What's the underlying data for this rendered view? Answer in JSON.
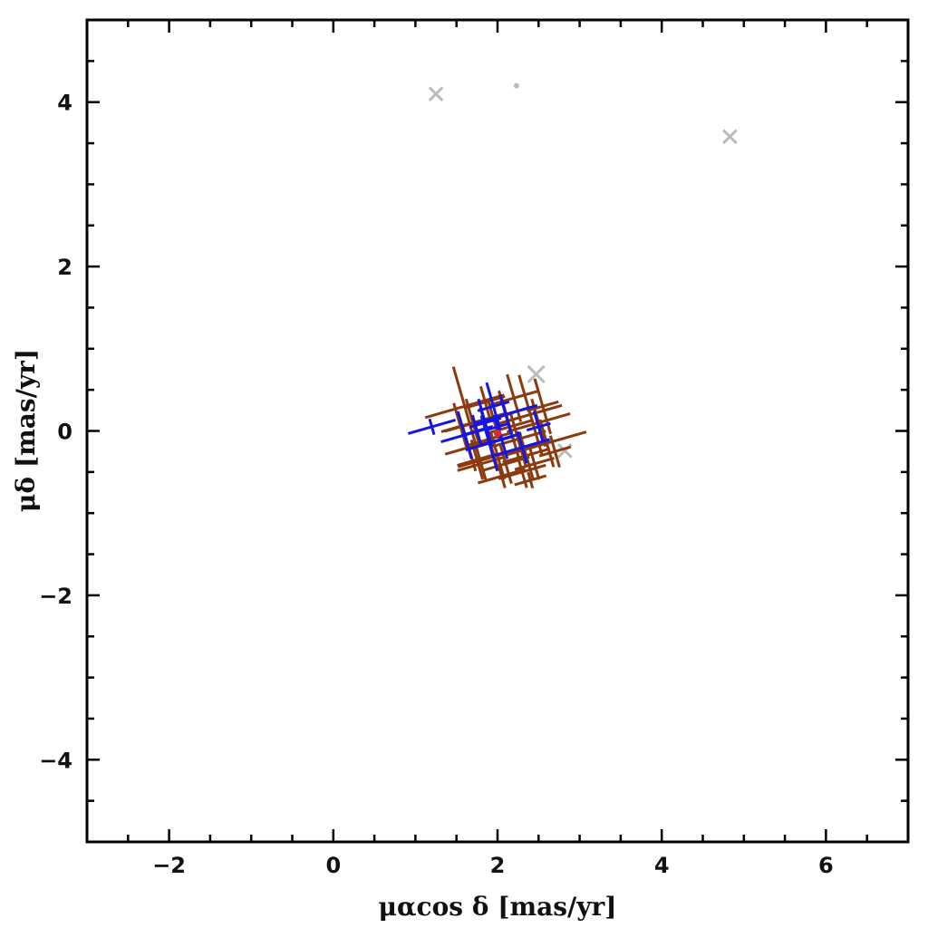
{
  "chart_data": {
    "type": "scatter",
    "title": "",
    "xlabel": "μαcos δ [mas/yr]",
    "ylabel": "μδ [mas/yr]",
    "xlim": [
      -3,
      7
    ],
    "ylim": [
      -5,
      5
    ],
    "x_ticks": [
      -2,
      0,
      2,
      4,
      6
    ],
    "y_ticks": [
      -4,
      -2,
      0,
      2,
      4
    ],
    "x_tick_labels": [
      "−2",
      "0",
      "2",
      "4",
      "6"
    ],
    "y_tick_labels": [
      "−4",
      "−2",
      "0",
      "2",
      "4"
    ],
    "grid": false,
    "colors": {
      "members": "#8B3A0E",
      "blue_members": "#1515E8",
      "field": "#BBBBBB",
      "center": "#E8262A",
      "frame": "#000000"
    },
    "series": [
      {
        "role": "field",
        "points": [
          {
            "x": 1.25,
            "y": 4.1,
            "ex": 0.08,
            "ey": 0.08
          },
          {
            "x": 4.83,
            "y": 3.58,
            "ex": 0.08,
            "ey": 0.08
          },
          {
            "x": 2.23,
            "y": 4.2,
            "ex": 0.0,
            "ey": 0.0
          },
          {
            "x": 2.47,
            "y": 0.69,
            "ex": 0.1,
            "ey": 0.1
          },
          {
            "x": 2.82,
            "y": -0.24,
            "ex": 0.08,
            "ey": 0.08
          }
        ]
      },
      {
        "role": "members",
        "points": [
          {
            "x": 1.6,
            "y": 0.3,
            "ex": 0.5,
            "ey": 0.5
          },
          {
            "x": 2.4,
            "y": 0.2,
            "ex": 0.4,
            "ey": 0.5
          },
          {
            "x": 2.0,
            "y": -0.3,
            "ex": 0.5,
            "ey": 0.3
          },
          {
            "x": 2.6,
            "y": -0.15,
            "ex": 0.5,
            "ey": 0.3
          },
          {
            "x": 1.8,
            "y": -0.4,
            "ex": 0.3,
            "ey": 0.2
          },
          {
            "x": 2.3,
            "y": -0.5,
            "ex": 0.3,
            "ey": 0.2
          },
          {
            "x": 1.7,
            "y": 0.1,
            "ex": 0.4,
            "ey": 0.3
          },
          {
            "x": 2.2,
            "y": 0.4,
            "ex": 0.3,
            "ey": 0.3
          },
          {
            "x": 2.5,
            "y": 0.1,
            "ex": 0.4,
            "ey": 0.3
          },
          {
            "x": 1.9,
            "y": -0.1,
            "ex": 0.3,
            "ey": 0.4
          },
          {
            "x": 2.1,
            "y": 0.2,
            "ex": 0.3,
            "ey": 0.3
          },
          {
            "x": 2.35,
            "y": -0.3,
            "ex": 0.3,
            "ey": 0.3
          },
          {
            "x": 1.65,
            "y": -0.2,
            "ex": 0.3,
            "ey": 0.3
          },
          {
            "x": 2.05,
            "y": -0.55,
            "ex": 0.3,
            "ey": 0.15
          },
          {
            "x": 2.45,
            "y": -0.4,
            "ex": 0.25,
            "ey": 0.2
          },
          {
            "x": 2.15,
            "y": 0.05,
            "ex": 0.3,
            "ey": 0.4
          },
          {
            "x": 1.85,
            "y": 0.35,
            "ex": 0.25,
            "ey": 0.2
          },
          {
            "x": 2.55,
            "y": 0.3,
            "ex": 0.2,
            "ey": 0.35
          },
          {
            "x": 1.75,
            "y": -0.35,
            "ex": 0.25,
            "ey": 0.25
          },
          {
            "x": 2.25,
            "y": -0.1,
            "ex": 0.35,
            "ey": 0.35
          },
          {
            "x": 1.95,
            "y": 0.15,
            "ex": 0.25,
            "ey": 0.25
          },
          {
            "x": 2.7,
            "y": -0.25,
            "ex": 0.2,
            "ey": 0.2
          },
          {
            "x": 2.4,
            "y": -0.6,
            "ex": 0.2,
            "ey": 0.1
          },
          {
            "x": 1.55,
            "y": 0.05,
            "ex": 0.2,
            "ey": 0.3
          },
          {
            "x": 2.1,
            "y": -0.4,
            "ex": 0.3,
            "ey": 0.25
          }
        ]
      },
      {
        "role": "blue_members",
        "points": [
          {
            "x": 1.2,
            "y": 0.05,
            "ex": 0.3,
            "ey": 0.1
          },
          {
            "x": 1.6,
            "y": -0.05,
            "ex": 0.3,
            "ey": 0.3
          },
          {
            "x": 2.1,
            "y": 0.2,
            "ex": 0.4,
            "ey": 0.25
          },
          {
            "x": 1.9,
            "y": -0.15,
            "ex": 0.3,
            "ey": 0.35
          },
          {
            "x": 1.85,
            "y": 0.1,
            "ex": 0.2,
            "ey": 0.3
          },
          {
            "x": 2.3,
            "y": -0.2,
            "ex": 0.35,
            "ey": 0.2
          },
          {
            "x": 1.95,
            "y": 0.3,
            "ex": 0.2,
            "ey": 0.3
          },
          {
            "x": 2.05,
            "y": -0.1,
            "ex": 0.25,
            "ey": 0.25
          },
          {
            "x": 1.75,
            "y": 0.0,
            "ex": 0.2,
            "ey": 0.2
          },
          {
            "x": 2.0,
            "y": 0.05,
            "ex": 0.15,
            "ey": 0.15
          },
          {
            "x": 2.5,
            "y": 0.05,
            "ex": 0.15,
            "ey": 0.2
          }
        ]
      }
    ],
    "center_point": {
      "x": 2.0,
      "y": -0.03
    }
  }
}
